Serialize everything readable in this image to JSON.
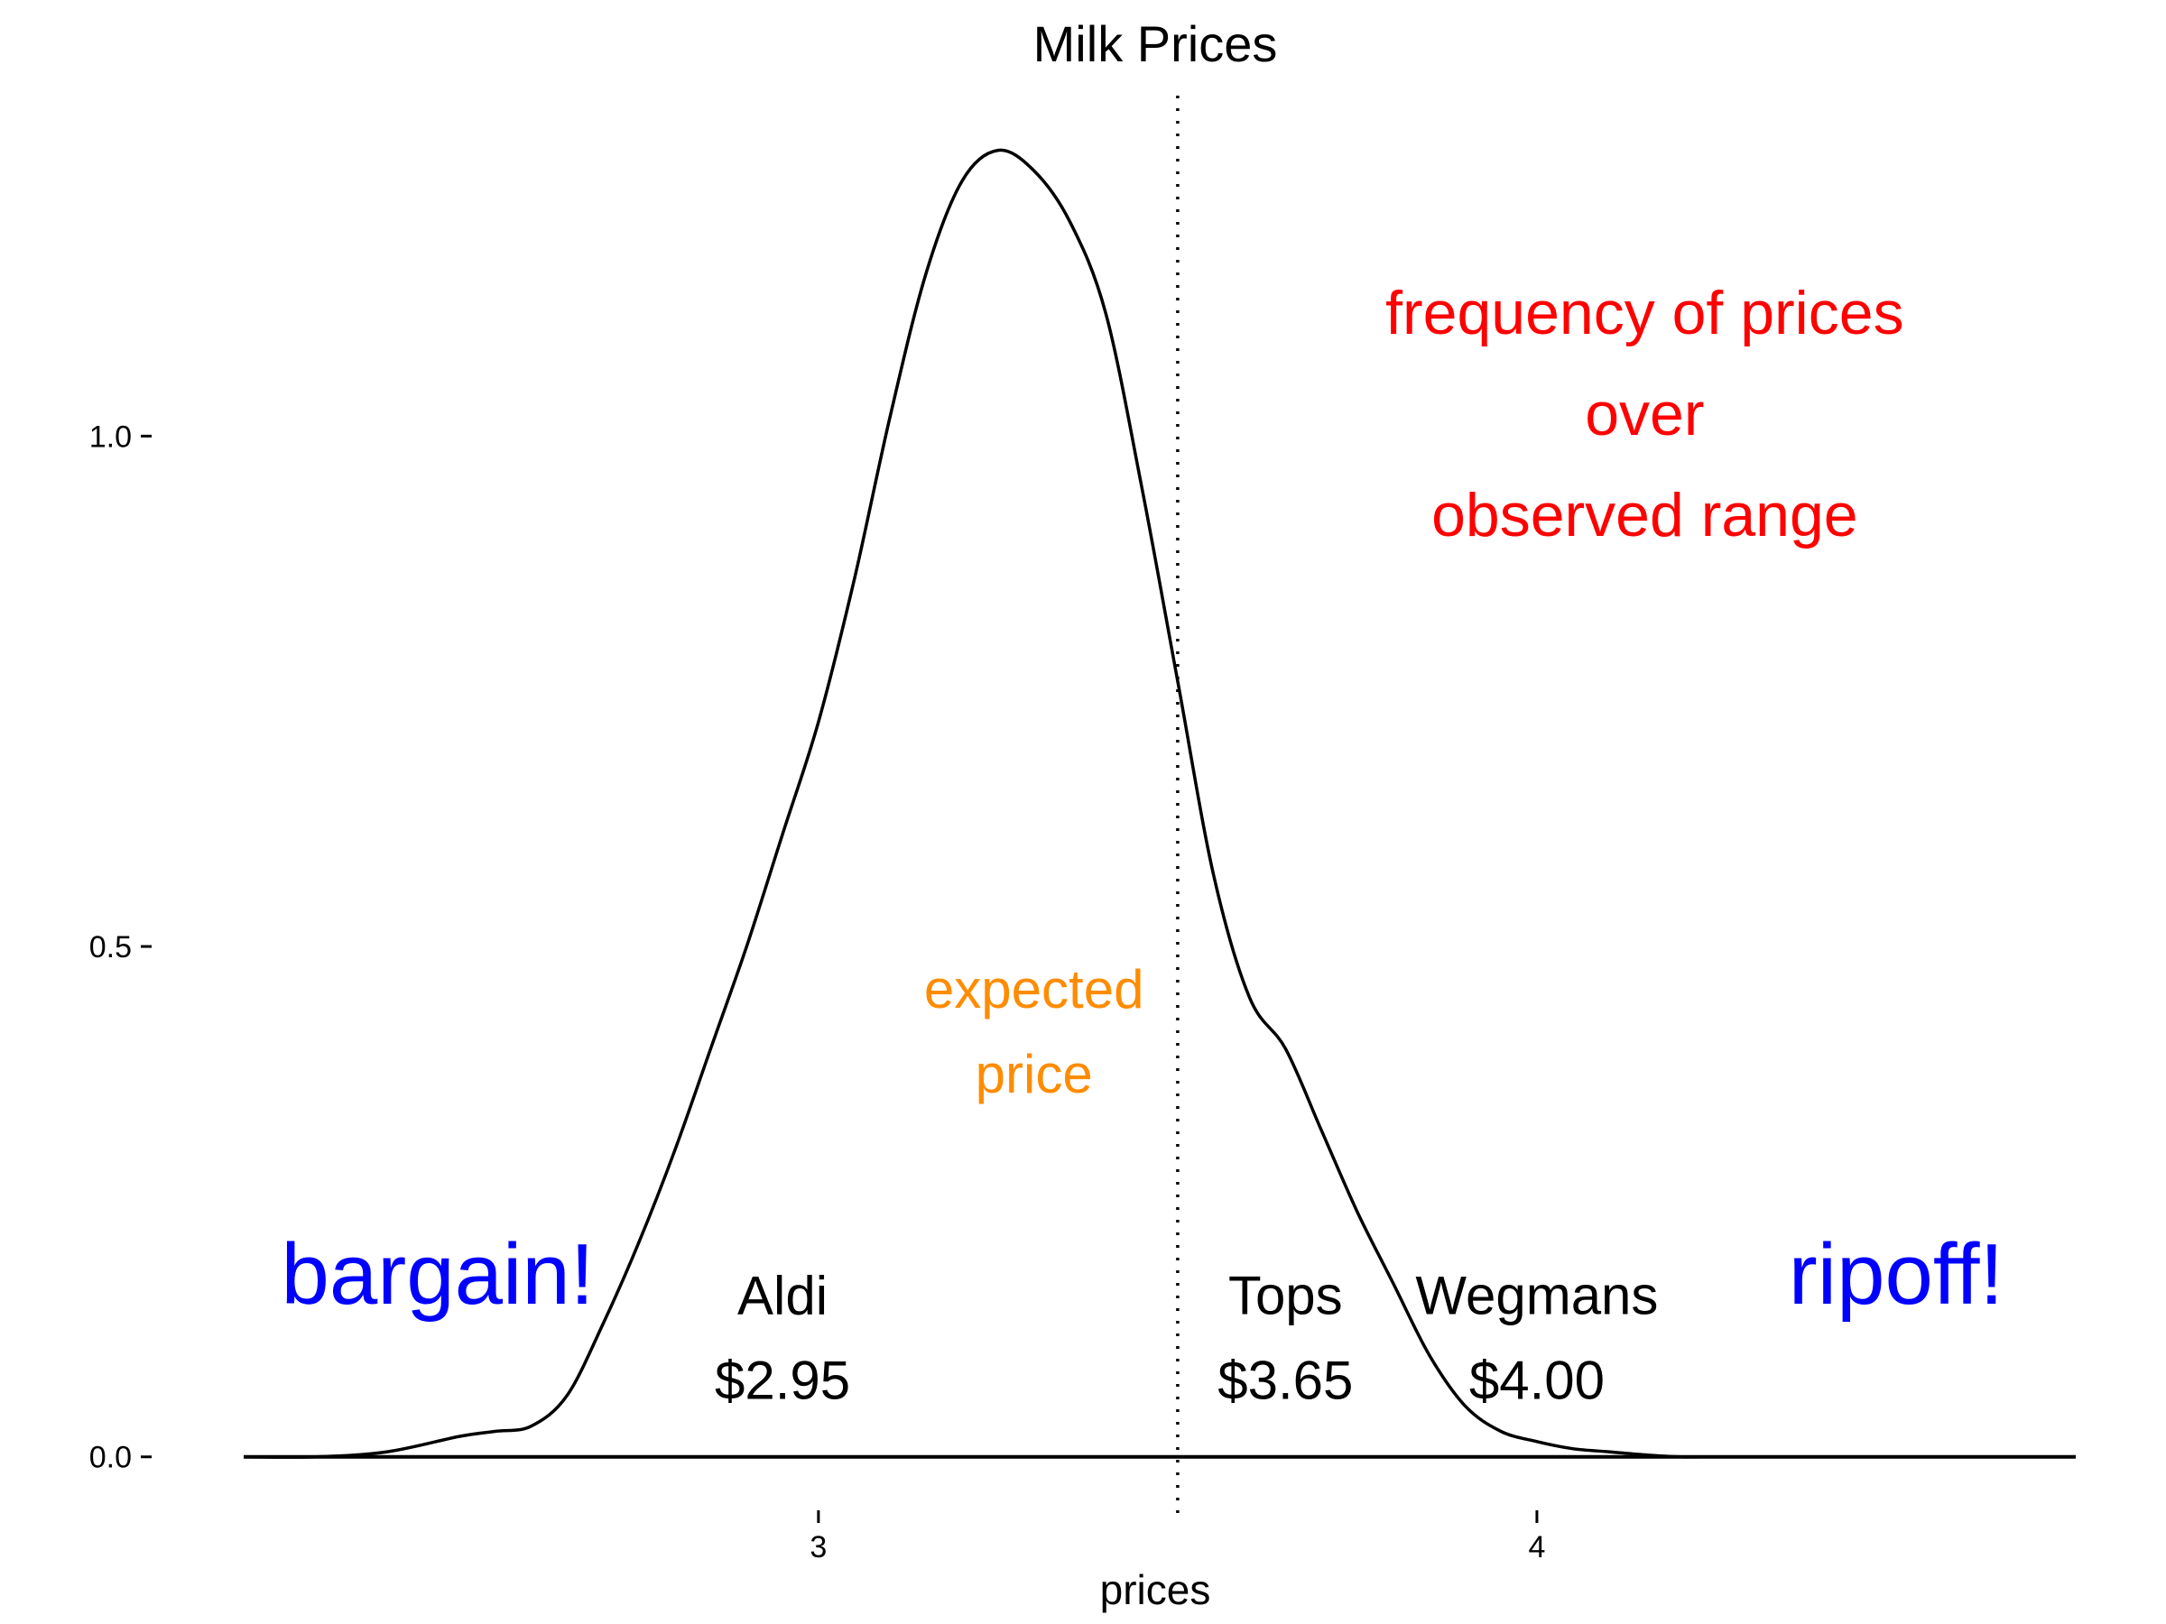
{
  "chart_data": {
    "type": "area",
    "title": "Milk Prices",
    "xlabel": "prices",
    "ylabel": "",
    "xlim": [
      2.2,
      4.75
    ],
    "ylim": [
      -0.04,
      1.33
    ],
    "x_ticks": [
      {
        "value": 3,
        "label": "3"
      },
      {
        "value": 4,
        "label": "4"
      }
    ],
    "y_ticks": [
      {
        "value": 0.0,
        "label": "0.0"
      },
      {
        "value": 0.5,
        "label": "0.5"
      },
      {
        "value": 1.0,
        "label": "1.0"
      }
    ],
    "grid": false,
    "legend": "none",
    "series": [
      {
        "x": [
          2.2,
          2.3,
          2.4,
          2.5,
          2.55,
          2.6,
          2.65,
          2.7,
          2.75,
          2.8,
          2.85,
          2.9,
          2.95,
          3.0,
          3.05,
          3.1,
          3.15,
          3.2,
          3.25,
          3.3,
          3.35,
          3.4,
          3.45,
          3.5,
          3.55,
          3.6,
          3.65,
          3.7,
          3.75,
          3.8,
          3.85,
          3.9,
          3.95,
          4.0,
          4.05,
          4.1,
          4.15,
          4.2,
          4.25,
          4.3,
          4.4,
          4.5,
          4.6,
          4.7,
          4.75
        ],
        "y": [
          0.0,
          0.0,
          0.005,
          0.02,
          0.025,
          0.03,
          0.06,
          0.13,
          0.21,
          0.3,
          0.4,
          0.5,
          0.61,
          0.72,
          0.86,
          1.02,
          1.16,
          1.25,
          1.28,
          1.26,
          1.21,
          1.12,
          0.95,
          0.76,
          0.57,
          0.45,
          0.4,
          0.32,
          0.24,
          0.17,
          0.1,
          0.05,
          0.025,
          0.015,
          0.008,
          0.005,
          0.002,
          0.0,
          0.0,
          0.0,
          0.0,
          0.0,
          0.0,
          0.0,
          0.0
        ]
      }
    ],
    "reference_line": {
      "x": 3.5,
      "style": "dotted"
    },
    "annotations": [
      {
        "lines": [
          "bargain!"
        ],
        "x": 2.47,
        "y": 0.15,
        "color": "#0000ff",
        "size": "large"
      },
      {
        "lines": [
          "ripoff!"
        ],
        "x": 4.5,
        "y": 0.15,
        "color": "#0000ff",
        "size": "large"
      },
      {
        "lines": [
          "Aldi",
          "$2.95"
        ],
        "x": 2.95,
        "y": 0.14,
        "color": "#000000",
        "size": "medium"
      },
      {
        "lines": [
          "Tops",
          "$3.65"
        ],
        "x": 3.65,
        "y": 0.14,
        "color": "#000000",
        "size": "medium"
      },
      {
        "lines": [
          "Wegmans",
          "$4.00"
        ],
        "x": 4.0,
        "y": 0.14,
        "color": "#000000",
        "size": "medium"
      },
      {
        "lines": [
          "expected",
          "price"
        ],
        "x": 3.3,
        "y": 0.44,
        "color": "#ff8c00",
        "size": "medium"
      },
      {
        "lines": [
          "frequency of prices",
          "over",
          "observed range"
        ],
        "x": 4.15,
        "y": 1.1,
        "color": "#ff0000",
        "size": "red"
      }
    ]
  }
}
